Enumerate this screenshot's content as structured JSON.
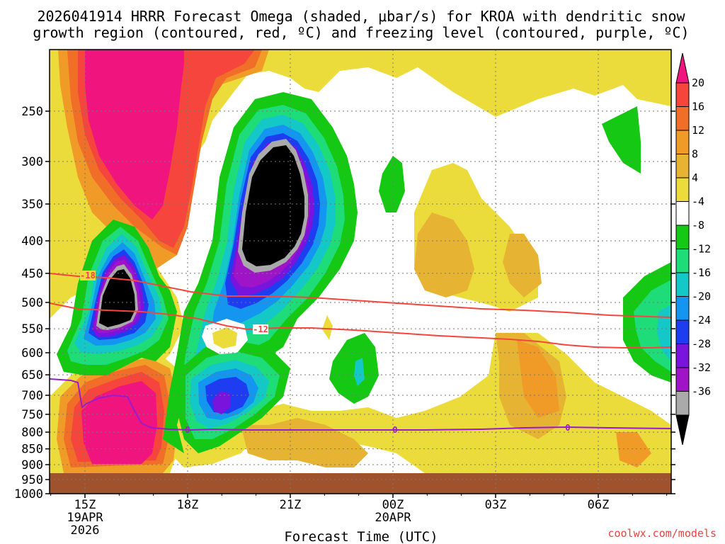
{
  "chart_data": {
    "type": "heatmap",
    "title_line1": "2026041914 HRRR Forecast Omega (shaded, μbar/s) for KROA with dendritic snow",
    "title_line2": "growth region (contoured, red, ºC) and freezing level (contoured, purple, ºC)",
    "xlabel": "Forecast Time (UTC)",
    "credit": "coolwx.com/models",
    "x_ticks": [
      {
        "hour": 15,
        "label": "15Z",
        "sub1": "19APR",
        "sub2": "2026"
      },
      {
        "hour": 18,
        "label": "18Z",
        "sub1": "",
        "sub2": ""
      },
      {
        "hour": 21,
        "label": "21Z",
        "sub1": "",
        "sub2": ""
      },
      {
        "hour": 24,
        "label": "00Z",
        "sub1": "20APR",
        "sub2": ""
      },
      {
        "hour": 27,
        "label": "03Z",
        "sub1": "",
        "sub2": ""
      },
      {
        "hour": 30,
        "label": "06Z",
        "sub1": "",
        "sub2": ""
      }
    ],
    "xlim_hours": [
      14,
      32
    ],
    "y_levels_hpa": [
      "250",
      "300",
      "350",
      "400",
      "450",
      "500",
      "550",
      "600",
      "650",
      "700",
      "750",
      "800",
      "850",
      "900",
      "950",
      "1000"
    ],
    "ylim_hpa": [
      200,
      1000
    ],
    "colorbar": {
      "units": "μbar/s",
      "labels": [
        "20",
        "16",
        "12",
        "8",
        "4",
        "-4",
        "-8",
        "-12",
        "-16",
        "-20",
        "-24",
        "-28",
        "-32",
        "-36"
      ],
      "colors": [
        "#f0147e",
        "#f5453c",
        "#f06e28",
        "#f09b28",
        "#e6b432",
        "#ebdc3c",
        "#ffffff",
        "#14c814",
        "#1edc78",
        "#14c8c8",
        "#1496f0",
        "#1e3cf0",
        "#7814dc",
        "#a014c8",
        "#aaaaaa",
        "#000000"
      ]
    },
    "dgz_contours": [
      {
        "temp_c": -18,
        "label": "-18",
        "color": "#f5453c"
      },
      {
        "temp_c": -12,
        "label": "-12",
        "color": "#f5453c"
      }
    ],
    "freezing_level": {
      "temp_c": 0,
      "label": "0",
      "color": "#9a1ad0"
    },
    "terrain_color": "#a0522d"
  }
}
